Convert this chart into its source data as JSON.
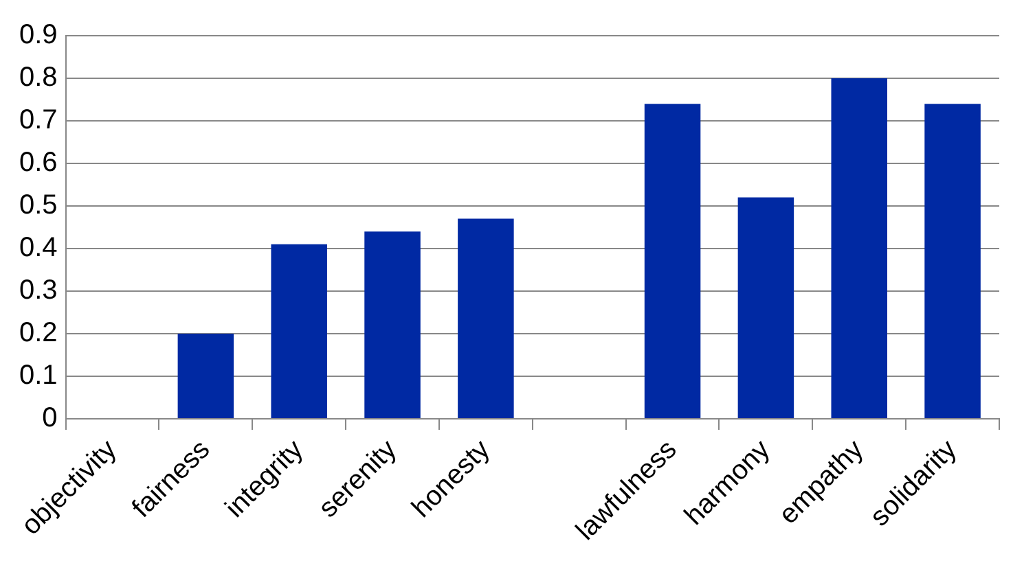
{
  "chart_data": {
    "type": "bar",
    "categories": [
      "objectivity",
      "fairness",
      "integrity",
      "serenity",
      "honesty",
      null,
      "lawfulness",
      "harmony",
      "empathy",
      "solidarity"
    ],
    "values": [
      0,
      0.2,
      0.41,
      0.44,
      0.47,
      null,
      0.74,
      0.52,
      0.8,
      0.74
    ],
    "color": "#0029a3",
    "ylim": [
      0,
      0.9
    ],
    "yticks": [
      0,
      0.1,
      0.2,
      0.3,
      0.4,
      0.5,
      0.6,
      0.7,
      0.8,
      0.9
    ],
    "grid": "y",
    "legend": false
  }
}
